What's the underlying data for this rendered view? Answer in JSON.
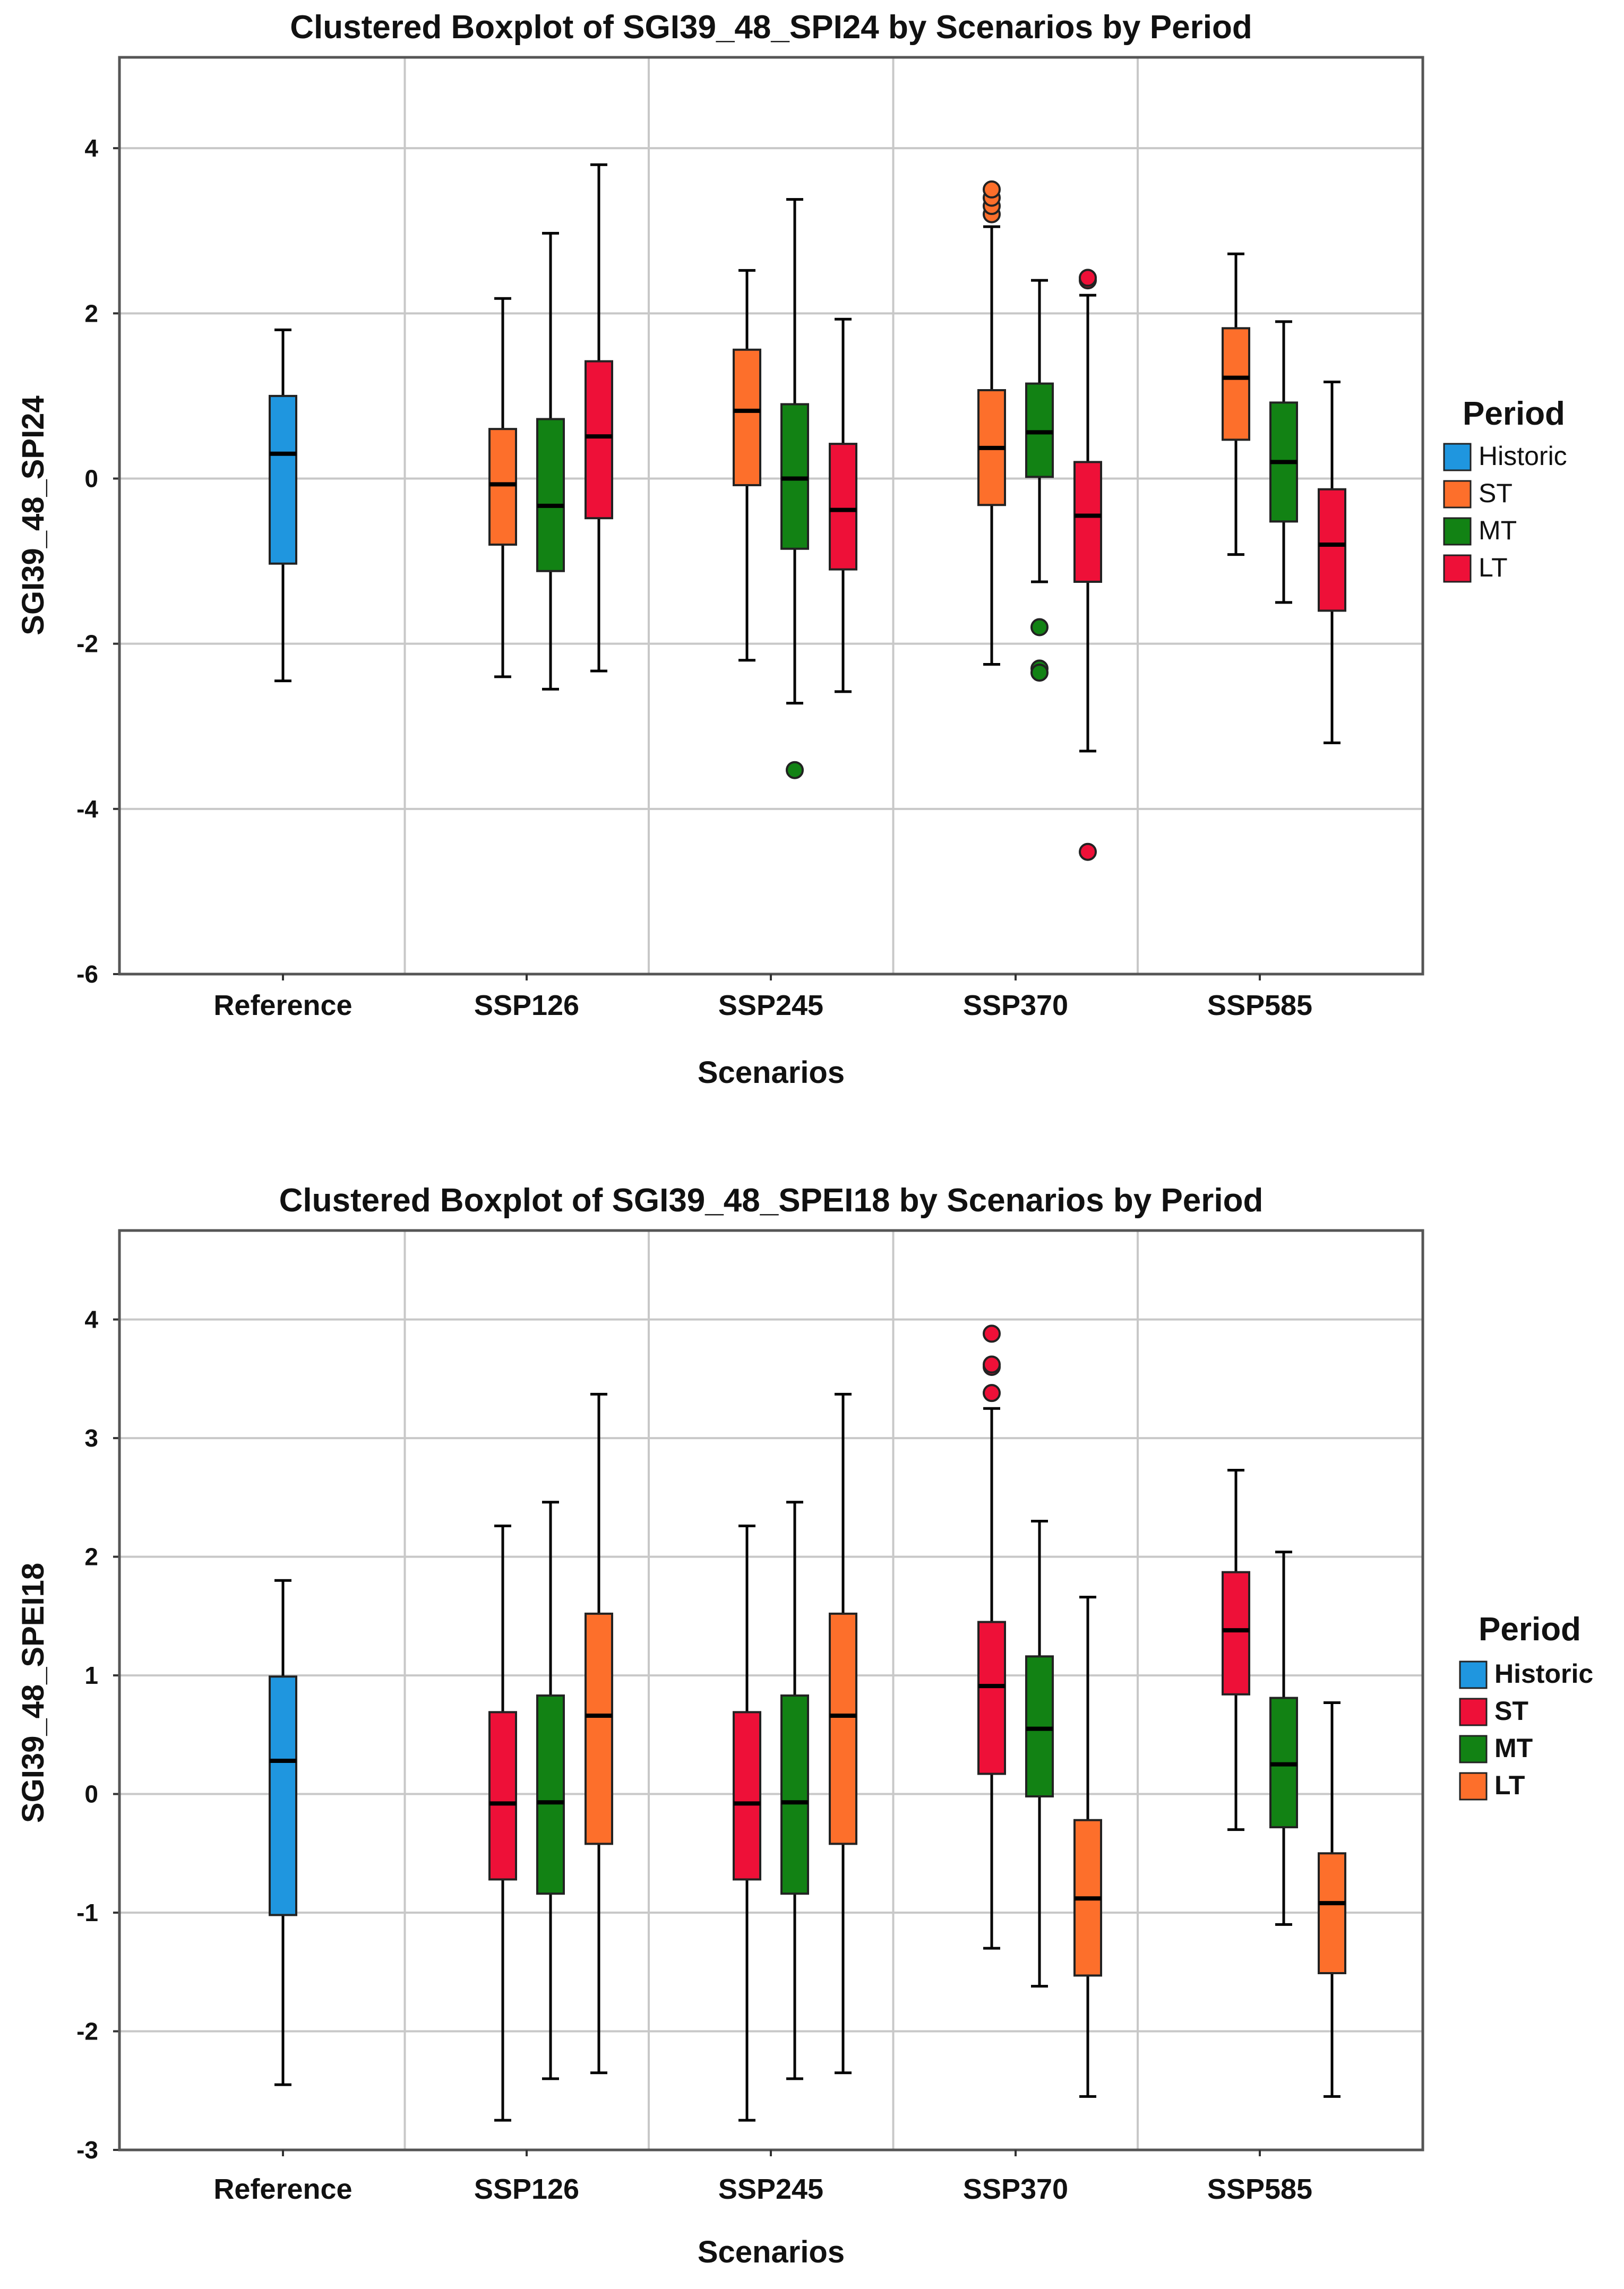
{
  "chart_data": [
    {
      "type": "boxplot",
      "title": "Clustered Boxplot of SGI39_48_SPI24 by Scenarios by Period",
      "xlabel": "Scenarios",
      "ylabel": "SGI39_48_SPI24",
      "ylim": [
        -6,
        5.1
      ],
      "yticks": [
        -6,
        -4,
        -2,
        0,
        2,
        4
      ],
      "categories": [
        "Reference",
        "SSP126",
        "SSP245",
        "SSP370",
        "SSP585"
      ],
      "legend": {
        "title": "Period",
        "placement": "right",
        "items": [
          {
            "label": "Historic",
            "color": "#1f96df"
          },
          {
            "label": "ST",
            "color": "#fd6f2b"
          },
          {
            "label": "MT",
            "color": "#128214"
          },
          {
            "label": "LT",
            "color": "#ee1038"
          }
        ]
      },
      "series": [
        {
          "name": "Historic",
          "color": "#1f96df",
          "boxes": [
            {
              "category": "Reference",
              "min": -2.45,
              "q1": -1.03,
              "median": 0.3,
              "q3": 1.0,
              "max": 1.8,
              "outliers": []
            }
          ]
        },
        {
          "name": "ST",
          "color": "#fd6f2b",
          "boxes": [
            {
              "category": "SSP126",
              "min": -2.4,
              "q1": -0.8,
              "median": -0.07,
              "q3": 0.6,
              "max": 2.18,
              "outliers": []
            },
            {
              "category": "SSP245",
              "min": -2.2,
              "q1": -0.08,
              "median": 0.82,
              "q3": 1.56,
              "max": 2.52,
              "outliers": []
            },
            {
              "category": "SSP370",
              "min": -2.25,
              "q1": -0.32,
              "median": 0.37,
              "q3": 1.07,
              "max": 3.05,
              "outliers": [
                3.2,
                3.3,
                3.4,
                3.5
              ]
            },
            {
              "category": "SSP585",
              "min": -0.92,
              "q1": 0.47,
              "median": 1.22,
              "q3": 1.82,
              "max": 2.72,
              "outliers": []
            }
          ]
        },
        {
          "name": "MT",
          "color": "#128214",
          "boxes": [
            {
              "category": "SSP126",
              "min": -2.55,
              "q1": -1.12,
              "median": -0.33,
              "q3": 0.72,
              "max": 2.97,
              "outliers": []
            },
            {
              "category": "SSP245",
              "min": -2.72,
              "q1": -0.85,
              "median": 0.0,
              "q3": 0.9,
              "max": 3.38,
              "outliers": [
                -3.53
              ]
            },
            {
              "category": "SSP370",
              "min": -1.25,
              "q1": 0.02,
              "median": 0.56,
              "q3": 1.15,
              "max": 2.4,
              "outliers": [
                -1.8,
                -2.3,
                -2.35
              ]
            },
            {
              "category": "SSP585",
              "min": -1.5,
              "q1": -0.52,
              "median": 0.2,
              "q3": 0.92,
              "max": 1.9,
              "outliers": []
            }
          ]
        },
        {
          "name": "LT",
          "color": "#ee1038",
          "boxes": [
            {
              "category": "SSP126",
              "min": -2.33,
              "q1": -0.48,
              "median": 0.51,
              "q3": 1.42,
              "max": 3.8,
              "outliers": []
            },
            {
              "category": "SSP245",
              "min": -2.58,
              "q1": -1.1,
              "median": -0.38,
              "q3": 0.42,
              "max": 1.93,
              "outliers": []
            },
            {
              "category": "SSP370",
              "min": -3.3,
              "q1": -1.25,
              "median": -0.45,
              "q3": 0.2,
              "max": 2.22,
              "outliers": [
                2.4,
                2.43,
                -4.52
              ]
            },
            {
              "category": "SSP585",
              "min": -3.2,
              "q1": -1.6,
              "median": -0.8,
              "q3": -0.13,
              "max": 1.17,
              "outliers": []
            }
          ]
        }
      ]
    },
    {
      "type": "boxplot",
      "title": "Clustered Boxplot of SGI39_48_SPEI18 by Scenarios by Period",
      "xlabel": "Scenarios",
      "ylabel": "SGI39_48_SPEI18",
      "ylim": [
        -3,
        4.75
      ],
      "yticks": [
        -3,
        -2,
        -1,
        0,
        1,
        2,
        3,
        4
      ],
      "categories": [
        "Reference",
        "SSP126",
        "SSP245",
        "SSP370",
        "SSP585"
      ],
      "legend": {
        "title": "Period",
        "placement": "right",
        "items": [
          {
            "label": "Historic",
            "color": "#1f96df"
          },
          {
            "label": "ST",
            "color": "#ee1038"
          },
          {
            "label": "MT",
            "color": "#128214"
          },
          {
            "label": "LT",
            "color": "#fd6f2b"
          }
        ]
      },
      "series": [
        {
          "name": "Historic",
          "color": "#1f96df",
          "boxes": [
            {
              "category": "Reference",
              "min": -2.45,
              "q1": -1.02,
              "median": 0.28,
              "q3": 0.99,
              "max": 1.8,
              "outliers": []
            }
          ]
        },
        {
          "name": "ST",
          "color": "#ee1038",
          "boxes": [
            {
              "category": "SSP126",
              "min": -2.75,
              "q1": -0.72,
              "median": -0.08,
              "q3": 0.69,
              "max": 2.26,
              "outliers": []
            },
            {
              "category": "SSP245",
              "min": -2.75,
              "q1": -0.72,
              "median": -0.08,
              "q3": 0.69,
              "max": 2.26,
              "outliers": []
            },
            {
              "category": "SSP370",
              "min": -1.3,
              "q1": 0.17,
              "median": 0.91,
              "q3": 1.45,
              "max": 3.25,
              "outliers": [
                3.38,
                3.6,
                3.62,
                3.88
              ]
            },
            {
              "category": "SSP585",
              "min": -0.3,
              "q1": 0.84,
              "median": 1.38,
              "q3": 1.87,
              "max": 2.73,
              "outliers": []
            }
          ]
        },
        {
          "name": "MT",
          "color": "#128214",
          "boxes": [
            {
              "category": "SSP126",
              "min": -2.4,
              "q1": -0.84,
              "median": -0.07,
              "q3": 0.83,
              "max": 2.46,
              "outliers": []
            },
            {
              "category": "SSP245",
              "min": -2.4,
              "q1": -0.84,
              "median": -0.07,
              "q3": 0.83,
              "max": 2.46,
              "outliers": []
            },
            {
              "category": "SSP370",
              "min": -1.62,
              "q1": -0.02,
              "median": 0.55,
              "q3": 1.16,
              "max": 2.3,
              "outliers": []
            },
            {
              "category": "SSP585",
              "min": -1.1,
              "q1": -0.28,
              "median": 0.25,
              "q3": 0.81,
              "max": 2.04,
              "outliers": []
            }
          ]
        },
        {
          "name": "LT",
          "color": "#fd6f2b",
          "boxes": [
            {
              "category": "SSP126",
              "min": -2.35,
              "q1": -0.42,
              "median": 0.66,
              "q3": 1.52,
              "max": 3.37,
              "outliers": []
            },
            {
              "category": "SSP245",
              "min": -2.35,
              "q1": -0.42,
              "median": 0.66,
              "q3": 1.52,
              "max": 3.37,
              "outliers": []
            },
            {
              "category": "SSP370",
              "min": -2.55,
              "q1": -1.53,
              "median": -0.88,
              "q3": -0.22,
              "max": 1.66,
              "outliers": []
            },
            {
              "category": "SSP585",
              "min": -2.55,
              "q1": -1.51,
              "median": -0.92,
              "q3": -0.5,
              "max": 0.77,
              "outliers": []
            }
          ]
        }
      ]
    }
  ]
}
